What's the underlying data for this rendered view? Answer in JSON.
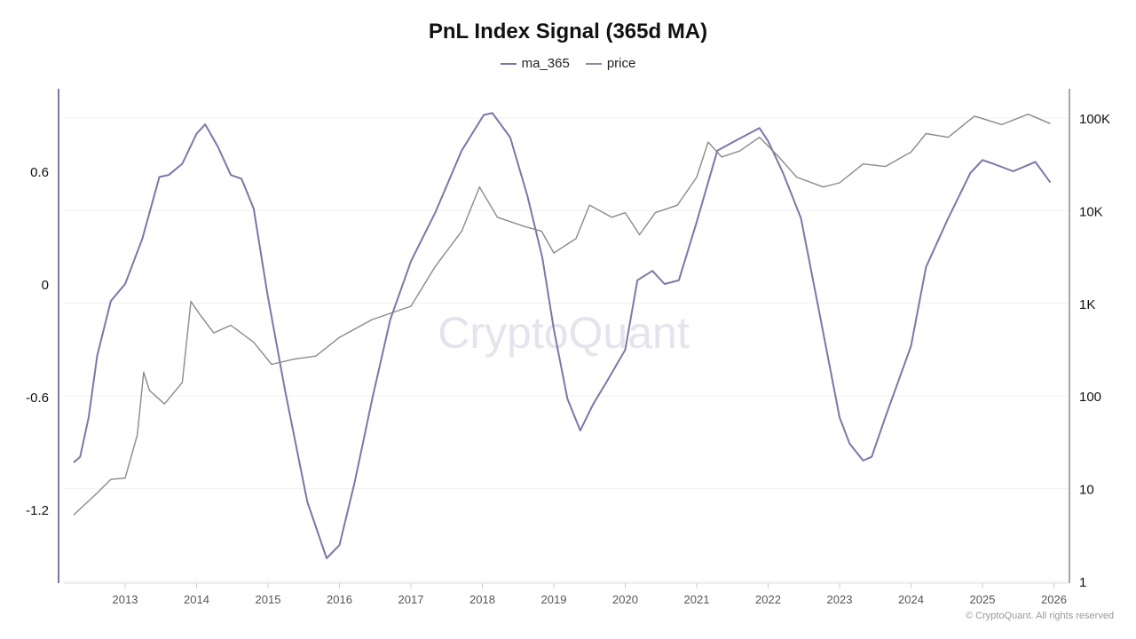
{
  "chart_data": {
    "type": "line",
    "title": "PnL Index Signal (365d MA)",
    "watermark": "CryptoQuant",
    "copyright": "© CryptoQuant. All rights reserved",
    "legend_placement": "top-center",
    "grid": true,
    "x_ticks": [
      "2013",
      "2014",
      "2015",
      "2016",
      "2017",
      "2018",
      "2019",
      "2020",
      "2021",
      "2022",
      "2023",
      "2024",
      "2025",
      "2026"
    ],
    "xlim": [
      2012.1,
      2026.2
    ],
    "left_axis": {
      "scale": "linear",
      "ticks": [
        0.6,
        0,
        -0.6,
        -1.2
      ],
      "tick_labels": [
        "0.6",
        "0",
        "-0.6",
        "-1.2"
      ],
      "ylim": [
        -1.59,
        1.03
      ]
    },
    "right_axis": {
      "scale": "log",
      "ticks": [
        100000,
        10000,
        1000,
        100,
        10,
        1
      ],
      "tick_labels": [
        "100K",
        "10K",
        "1K",
        "100",
        "10",
        "1"
      ],
      "ylim": [
        1,
        300000
      ]
    },
    "series": [
      {
        "name": "ma_365",
        "axis": "left",
        "color": "#7b77a8",
        "x": [
          2012.28,
          2012.37,
          2012.49,
          2012.61,
          2012.8,
          2013.0,
          2013.24,
          2013.48,
          2013.61,
          2013.8,
          2014.0,
          2014.12,
          2014.3,
          2014.48,
          2014.63,
          2014.8,
          2014.99,
          2015.24,
          2015.55,
          2015.82,
          2016.0,
          2016.21,
          2016.46,
          2016.71,
          2017.0,
          2017.34,
          2017.71,
          2018.02,
          2018.14,
          2018.39,
          2018.63,
          2018.84,
          2019.0,
          2019.19,
          2019.37,
          2019.55,
          2019.74,
          2020.0,
          2020.17,
          2020.38,
          2020.55,
          2020.75,
          2021.0,
          2021.29,
          2021.53,
          2021.88,
          2022.0,
          2022.21,
          2022.46,
          2022.71,
          2023.0,
          2023.14,
          2023.33,
          2023.45,
          2023.64,
          2024.0,
          2024.21,
          2024.52,
          2024.83,
          2025.0,
          2025.15,
          2025.43,
          2025.74,
          2025.95
        ],
        "values": [
          -0.95,
          -0.92,
          -0.71,
          -0.38,
          -0.09,
          0.0,
          0.24,
          0.57,
          0.58,
          0.64,
          0.8,
          0.85,
          0.73,
          0.58,
          0.56,
          0.4,
          -0.05,
          -0.57,
          -1.16,
          -1.46,
          -1.39,
          -1.06,
          -0.61,
          -0.19,
          0.12,
          0.38,
          0.71,
          0.9,
          0.91,
          0.78,
          0.47,
          0.14,
          -0.24,
          -0.61,
          -0.78,
          -0.64,
          -0.52,
          -0.35,
          0.02,
          0.07,
          0.0,
          0.02,
          0.33,
          0.71,
          0.76,
          0.83,
          0.76,
          0.59,
          0.35,
          -0.14,
          -0.71,
          -0.85,
          -0.94,
          -0.92,
          -0.71,
          -0.33,
          0.09,
          0.35,
          0.59,
          0.66,
          0.64,
          0.6,
          0.65,
          0.54
        ]
      },
      {
        "name": "price",
        "axis": "right",
        "color": "#8a8a8a",
        "x": [
          2012.28,
          2012.61,
          2012.8,
          2013.0,
          2013.17,
          2013.26,
          2013.34,
          2013.55,
          2013.8,
          2013.92,
          2014.05,
          2014.24,
          2014.48,
          2014.8,
          2015.05,
          2015.36,
          2015.67,
          2016.0,
          2016.46,
          2017.0,
          2017.34,
          2017.71,
          2017.96,
          2018.21,
          2018.58,
          2018.83,
          2019.0,
          2019.31,
          2019.5,
          2019.81,
          2020.0,
          2020.2,
          2020.42,
          2020.73,
          2021.0,
          2021.16,
          2021.35,
          2021.6,
          2021.88,
          2022.15,
          2022.4,
          2022.77,
          2023.0,
          2023.33,
          2023.64,
          2024.0,
          2024.21,
          2024.52,
          2024.89,
          2025.27,
          2025.64,
          2025.95
        ],
        "values": [
          5.2,
          9,
          12.6,
          13,
          38,
          180,
          115,
          82,
          140,
          1050,
          750,
          480,
          580,
          380,
          220,
          250,
          270,
          430,
          670,
          930,
          2500,
          6000,
          18000,
          8500,
          6800,
          6000,
          3500,
          5000,
          11500,
          8500,
          9500,
          5500,
          9500,
          11500,
          23000,
          55000,
          38000,
          44000,
          62000,
          38000,
          23000,
          18000,
          20000,
          32000,
          30000,
          43000,
          68000,
          62000,
          105000,
          85000,
          110000,
          87000
        ]
      }
    ]
  }
}
